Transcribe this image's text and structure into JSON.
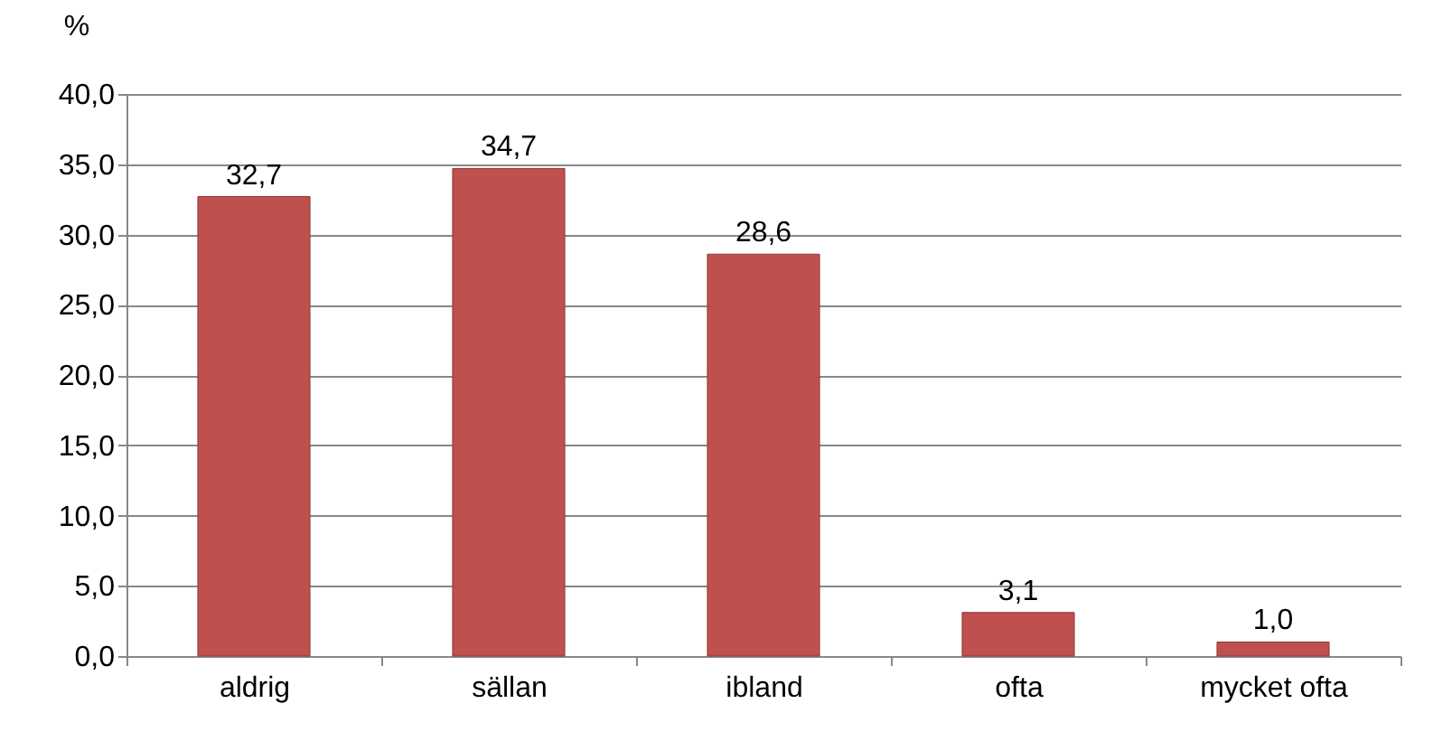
{
  "chart_data": {
    "type": "bar",
    "ylabel": "%",
    "categories": [
      "aldrig",
      "sällan",
      "ibland",
      "ofta",
      "mycket ofta"
    ],
    "values": [
      32.7,
      34.7,
      28.6,
      3.1,
      1.0
    ],
    "value_labels": [
      "32,7",
      "34,7",
      "28,6",
      "3,1",
      "1,0"
    ],
    "color": "#c0504d",
    "ylim": [
      0,
      40
    ],
    "yticks": [
      {
        "value": 0,
        "label": "0,0"
      },
      {
        "value": 5,
        "label": "5,0"
      },
      {
        "value": 10,
        "label": "10,0"
      },
      {
        "value": 15,
        "label": "15,0"
      },
      {
        "value": 20,
        "label": "20,0"
      },
      {
        "value": 25,
        "label": "25,0"
      },
      {
        "value": 30,
        "label": "30,0"
      },
      {
        "value": 35,
        "label": "35,0"
      },
      {
        "value": 40,
        "label": "40,0"
      }
    ],
    "grid": "y"
  }
}
